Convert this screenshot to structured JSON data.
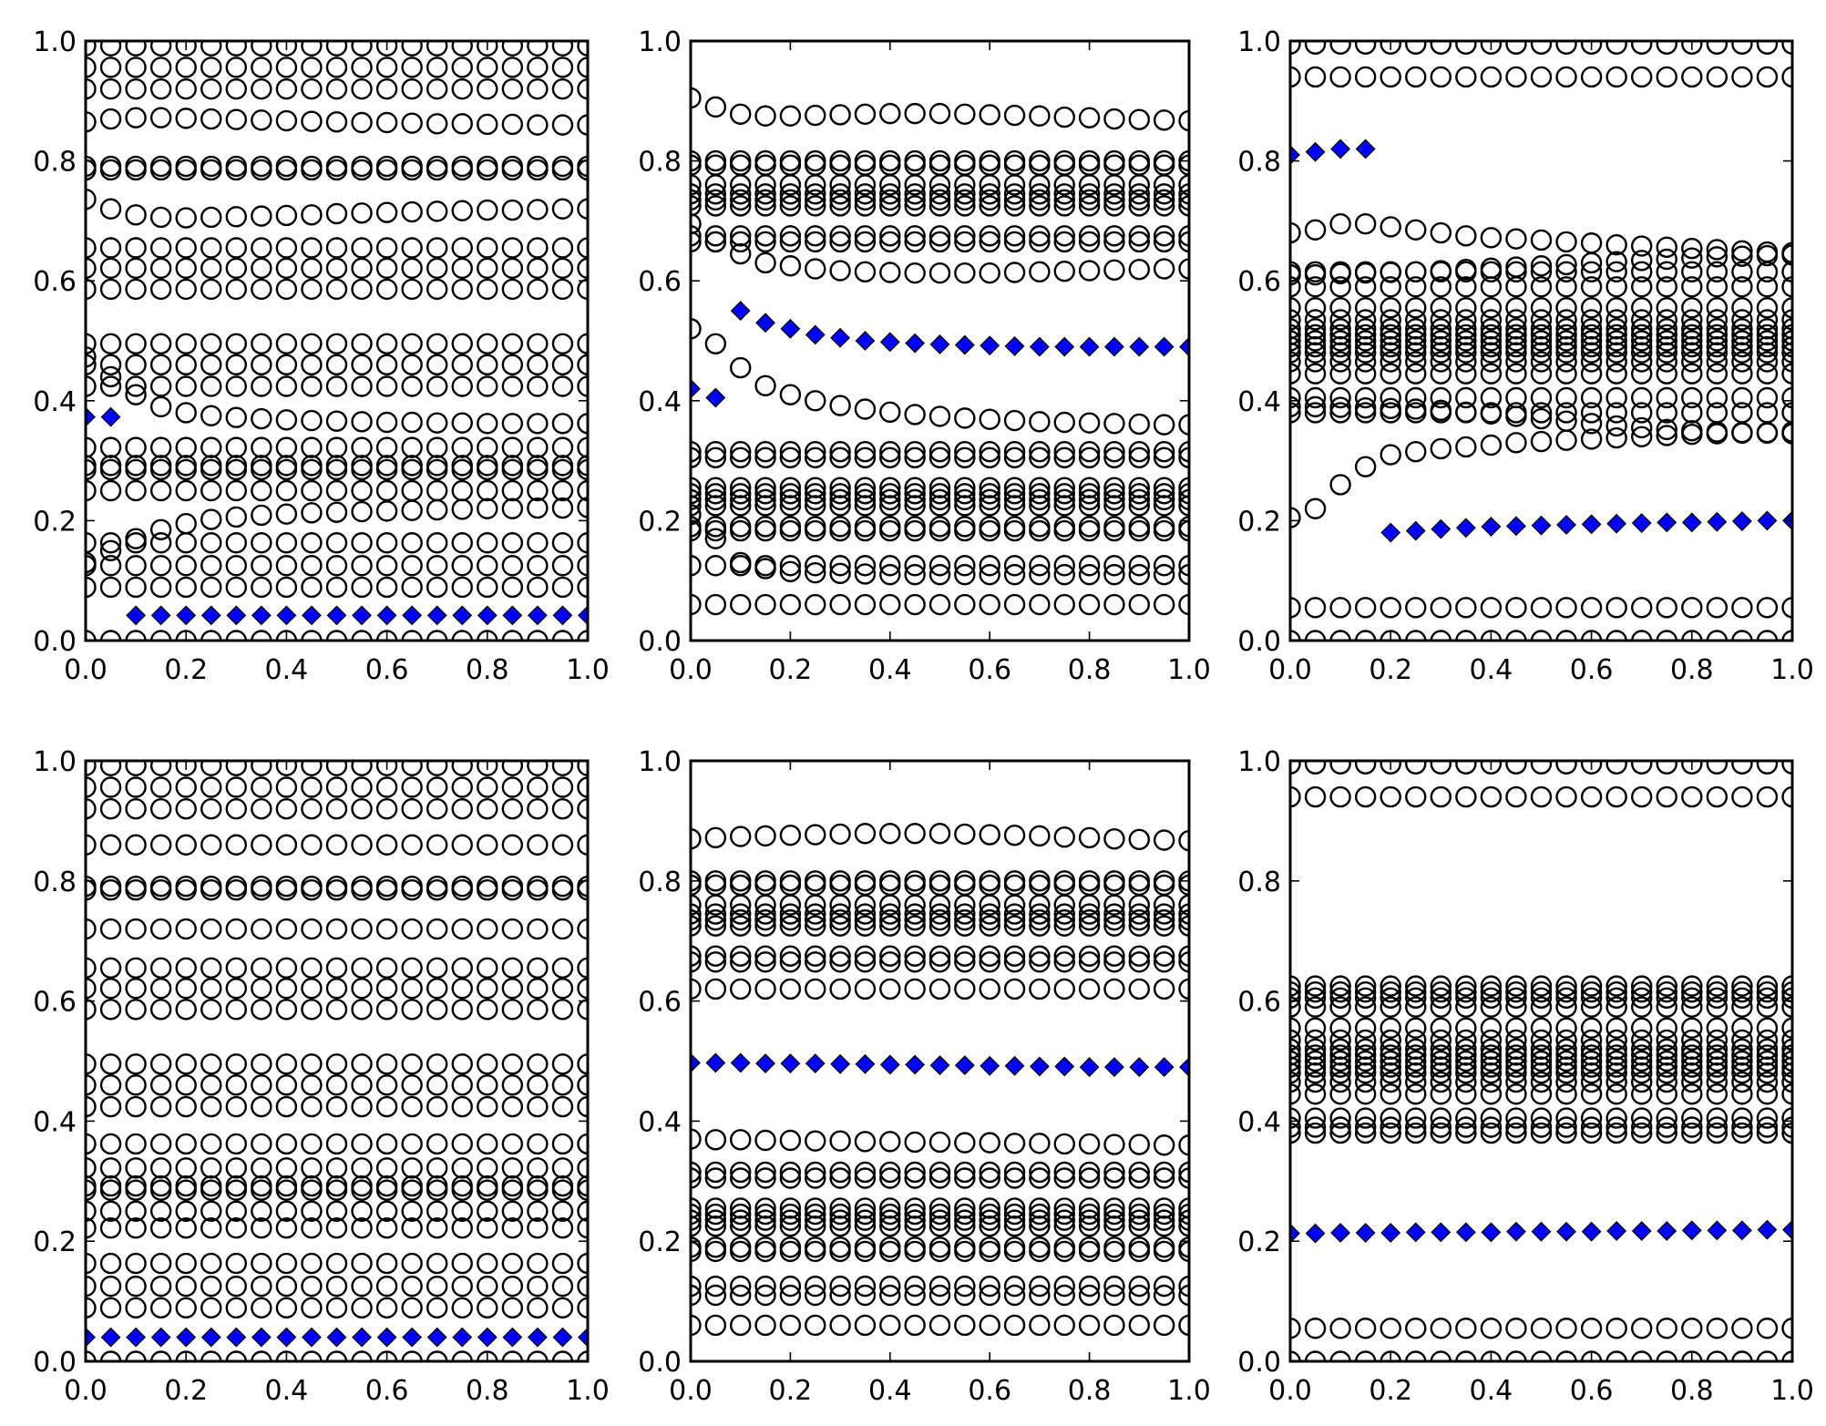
{
  "chart_data": [
    {
      "type": "scatter",
      "xlim": [
        0,
        1
      ],
      "ylim": [
        0,
        1
      ],
      "x_ticks": [
        "0.0",
        "0.2",
        "0.4",
        "0.6",
        "0.8",
        "1.0"
      ],
      "y_ticks": [
        "0.0",
        "0.2",
        "0.4",
        "0.6",
        "0.8",
        "1.0"
      ],
      "x": [
        0,
        0.05,
        0.1,
        0.15,
        0.2,
        0.25,
        0.3,
        0.35,
        0.4,
        0.45,
        0.5,
        0.55,
        0.6,
        0.65,
        0.7,
        0.75,
        0.8,
        0.85,
        0.9,
        0.95,
        1.0
      ],
      "circles": [
        {
          "y": 0.992
        },
        {
          "y": 0.956
        },
        {
          "y": 0.92
        },
        {
          "y": [
            0.865,
            0.87,
            0.872,
            0.872,
            0.871,
            0.87,
            0.869,
            0.868,
            0.867,
            0.866,
            0.865,
            0.864,
            0.864,
            0.863,
            0.862,
            0.862,
            0.861,
            0.861,
            0.86,
            0.86,
            0.86
          ]
        },
        {
          "y": 0.791
        },
        {
          "y": 0.785
        },
        {
          "y": [
            0.736,
            0.72,
            0.71,
            0.706,
            0.705,
            0.706,
            0.707,
            0.708,
            0.709,
            0.71,
            0.712,
            0.713,
            0.714,
            0.715,
            0.716,
            0.717,
            0.718,
            0.718,
            0.719,
            0.72,
            0.72
          ]
        },
        {
          "y": 0.655
        },
        {
          "y": 0.621
        },
        {
          "y": 0.586
        },
        {
          "y": 0.495
        },
        {
          "y": 0.46
        },
        {
          "y": 0.424
        },
        {
          "y": [
            0.473,
            0.44,
            0.41,
            0.39,
            0.38,
            0.375,
            0.372,
            0.37,
            0.368,
            0.367,
            0.366,
            0.365,
            0.364,
            0.364,
            0.363,
            0.363,
            0.362,
            0.362,
            0.362,
            0.362,
            0.362
          ]
        },
        {
          "y": 0.322
        },
        {
          "y": 0.292
        },
        {
          "y": 0.285
        },
        {
          "y": 0.25
        },
        {
          "y": [
            0.13,
            0.15,
            0.17,
            0.185,
            0.195,
            0.202,
            0.206,
            0.209,
            0.211,
            0.213,
            0.214,
            0.215,
            0.216,
            0.217,
            0.218,
            0.219,
            0.22,
            0.22,
            0.221,
            0.221,
            0.222
          ]
        },
        {
          "y": 0.163
        },
        {
          "y": 0.125
        },
        {
          "y": 0.089
        },
        {
          "y": 0.0
        }
      ],
      "diamonds": {
        "x": [
          0,
          0.05,
          0.1,
          0.15,
          0.2,
          0.25,
          0.3,
          0.35,
          0.4,
          0.45,
          0.5,
          0.55,
          0.6,
          0.65,
          0.7,
          0.75,
          0.8,
          0.85,
          0.9,
          0.95,
          1.0
        ],
        "y": [
          0.373,
          0.373,
          0.042,
          0.042,
          0.042,
          0.042,
          0.042,
          0.042,
          0.042,
          0.042,
          0.042,
          0.042,
          0.042,
          0.042,
          0.042,
          0.042,
          0.042,
          0.042,
          0.042,
          0.042,
          0.042
        ]
      }
    },
    {
      "type": "scatter",
      "xlim": [
        0,
        1
      ],
      "ylim": [
        0,
        1
      ],
      "x_ticks": [
        "0.0",
        "0.2",
        "0.4",
        "0.6",
        "0.8",
        "1.0"
      ],
      "y_ticks": [
        "0.0",
        "0.2",
        "0.4",
        "0.6",
        "0.8",
        "1.0"
      ],
      "x": [
        0,
        0.05,
        0.1,
        0.15,
        0.2,
        0.25,
        0.3,
        0.35,
        0.4,
        0.45,
        0.5,
        0.55,
        0.6,
        0.65,
        0.7,
        0.75,
        0.8,
        0.85,
        0.9,
        0.95,
        1.0
      ],
      "circles": [
        {
          "y": [
            0.905,
            0.89,
            0.878,
            0.875,
            0.875,
            0.876,
            0.877,
            0.878,
            0.879,
            0.879,
            0.879,
            0.878,
            0.877,
            0.876,
            0.875,
            0.873,
            0.872,
            0.87,
            0.869,
            0.868,
            0.867
          ]
        },
        {
          "y": 0.8
        },
        {
          "y": 0.793
        },
        {
          "y": 0.76
        },
        {
          "y": 0.745
        },
        {
          "y": 0.735
        },
        {
          "y": 0.725
        },
        {
          "y": [
            0.695,
            0.665,
            0.645,
            0.63,
            0.625,
            0.62,
            0.617,
            0.615,
            0.614,
            0.613,
            0.613,
            0.613,
            0.613,
            0.614,
            0.615,
            0.616,
            0.617,
            0.618,
            0.619,
            0.62,
            0.62
          ]
        },
        {
          "y": 0.675
        },
        {
          "y": 0.665
        },
        {
          "y": [
            0.52,
            0.495,
            0.455,
            0.425,
            0.41,
            0.4,
            0.392,
            0.386,
            0.381,
            0.377,
            0.374,
            0.371,
            0.369,
            0.367,
            0.365,
            0.364,
            0.363,
            0.362,
            0.361,
            0.36,
            0.36
          ]
        },
        {
          "y": 0.315
        },
        {
          "y": 0.305
        },
        {
          "y": 0.255
        },
        {
          "y": 0.245
        },
        {
          "y": 0.235
        },
        {
          "y": 0.225
        },
        {
          "y": 0.19
        },
        {
          "y": 0.183
        },
        {
          "y": [
            0.21,
            0.17,
            0.13,
            0.12,
            0.115,
            0.113,
            0.112,
            0.111,
            0.11,
            0.11,
            0.11,
            0.11,
            0.11,
            0.11,
            0.11,
            0.11,
            0.11,
            0.11,
            0.11,
            0.11,
            0.11
          ]
        },
        {
          "y": 0.125
        },
        {
          "y": 0.06
        }
      ],
      "diamonds": {
        "x": [
          0,
          0.05,
          0.1,
          0.15,
          0.2,
          0.25,
          0.3,
          0.35,
          0.4,
          0.45,
          0.5,
          0.55,
          0.6,
          0.65,
          0.7,
          0.75,
          0.8,
          0.85,
          0.9,
          0.95,
          1.0
        ],
        "y": [
          0.42,
          0.405,
          0.55,
          0.53,
          0.52,
          0.51,
          0.505,
          0.5,
          0.498,
          0.496,
          0.494,
          0.493,
          0.492,
          0.491,
          0.49,
          0.49,
          0.49,
          0.49,
          0.49,
          0.49,
          0.49
        ]
      }
    },
    {
      "type": "scatter",
      "xlim": [
        0,
        1
      ],
      "ylim": [
        0,
        1
      ],
      "x_ticks": [
        "0.0",
        "0.2",
        "0.4",
        "0.6",
        "0.8",
        "1.0"
      ],
      "y_ticks": [
        "0.0",
        "0.2",
        "0.4",
        "0.6",
        "0.8",
        "1.0"
      ],
      "x": [
        0,
        0.05,
        0.1,
        0.15,
        0.2,
        0.25,
        0.3,
        0.35,
        0.4,
        0.45,
        0.5,
        0.55,
        0.6,
        0.65,
        0.7,
        0.75,
        0.8,
        0.85,
        0.9,
        0.95,
        1.0
      ],
      "circles": [
        {
          "y": 0.995
        },
        {
          "y": 0.94
        },
        {
          "y": [
            0.68,
            0.685,
            0.695,
            0.695,
            0.69,
            0.685,
            0.68,
            0.675,
            0.672,
            0.67,
            0.668,
            0.665,
            0.663,
            0.66,
            0.658,
            0.656,
            0.654,
            0.652,
            0.65,
            0.648,
            0.647
          ]
        },
        {
          "y": [
            0.61,
            0.61,
            0.612,
            0.613,
            0.614,
            0.615,
            0.617,
            0.619,
            0.621,
            0.623,
            0.625,
            0.627,
            0.63,
            0.632,
            0.634,
            0.636,
            0.638,
            0.64,
            0.641,
            0.642,
            0.643
          ]
        },
        {
          "y": 0.615
        },
        {
          "y": 0.59
        },
        {
          "y": 0.555
        },
        {
          "y": 0.535
        },
        {
          "y": 0.52
        },
        {
          "y": 0.51
        },
        {
          "y": 0.5
        },
        {
          "y": 0.49
        },
        {
          "y": 0.48
        },
        {
          "y": 0.465
        },
        {
          "y": 0.445
        },
        {
          "y": 0.405
        },
        {
          "y": 0.38
        },
        {
          "y": [
            0.39,
            0.39,
            0.389,
            0.388,
            0.387,
            0.386,
            0.384,
            0.381,
            0.378,
            0.374,
            0.37,
            0.366,
            0.362,
            0.358,
            0.355,
            0.352,
            0.35,
            0.348,
            0.347,
            0.346,
            0.345
          ]
        },
        {
          "y": [
            0.205,
            0.22,
            0.26,
            0.29,
            0.31,
            0.315,
            0.32,
            0.323,
            0.326,
            0.33,
            0.332,
            0.334,
            0.336,
            0.338,
            0.34,
            0.342,
            0.344,
            0.345,
            0.346,
            0.347,
            0.348
          ]
        },
        {
          "y": 0.055
        },
        {
          "y": 0.0
        }
      ],
      "diamonds": {
        "x": [
          0,
          0.05,
          0.1,
          0.15,
          0.2,
          0.25,
          0.3,
          0.35,
          0.4,
          0.45,
          0.5,
          0.55,
          0.6,
          0.65,
          0.7,
          0.75,
          0.8,
          0.85,
          0.9,
          0.95,
          1.0
        ],
        "y": [
          0.81,
          0.815,
          0.82,
          0.82,
          0.18,
          0.183,
          0.186,
          0.188,
          0.19,
          0.191,
          0.192,
          0.193,
          0.194,
          0.195,
          0.196,
          0.197,
          0.197,
          0.198,
          0.199,
          0.2,
          0.2
        ]
      }
    },
    {
      "type": "scatter",
      "xlim": [
        0,
        1
      ],
      "ylim": [
        0,
        1
      ],
      "x_ticks": [
        "0.0",
        "0.2",
        "0.4",
        "0.6",
        "0.8",
        "1.0"
      ],
      "y_ticks": [
        "0.0",
        "0.2",
        "0.4",
        "0.6",
        "0.8",
        "1.0"
      ],
      "x": [
        0,
        0.05,
        0.1,
        0.15,
        0.2,
        0.25,
        0.3,
        0.35,
        0.4,
        0.45,
        0.5,
        0.55,
        0.6,
        0.65,
        0.7,
        0.75,
        0.8,
        0.85,
        0.9,
        0.95,
        1.0
      ],
      "circles": [
        {
          "y": 0.992
        },
        {
          "y": 0.956
        },
        {
          "y": 0.92
        },
        {
          "y": 0.86
        },
        {
          "y": 0.791
        },
        {
          "y": 0.785
        },
        {
          "y": 0.72
        },
        {
          "y": 0.655
        },
        {
          "y": 0.621
        },
        {
          "y": 0.586
        },
        {
          "y": 0.495
        },
        {
          "y": 0.46
        },
        {
          "y": 0.424
        },
        {
          "y": 0.362
        },
        {
          "y": 0.322
        },
        {
          "y": 0.292
        },
        {
          "y": 0.285
        },
        {
          "y": 0.25
        },
        {
          "y": 0.222
        },
        {
          "y": 0.163
        },
        {
          "y": 0.125
        },
        {
          "y": 0.089
        },
        {
          "y": 0.0
        }
      ],
      "diamonds": {
        "x": [
          0,
          0.05,
          0.1,
          0.15,
          0.2,
          0.25,
          0.3,
          0.35,
          0.4,
          0.45,
          0.5,
          0.55,
          0.6,
          0.65,
          0.7,
          0.75,
          0.8,
          0.85,
          0.9,
          0.95,
          1.0
        ],
        "y": [
          0.04,
          0.04,
          0.04,
          0.04,
          0.04,
          0.04,
          0.04,
          0.04,
          0.04,
          0.04,
          0.04,
          0.04,
          0.04,
          0.04,
          0.04,
          0.04,
          0.04,
          0.04,
          0.04,
          0.04,
          0.04
        ]
      }
    },
    {
      "type": "scatter",
      "xlim": [
        0,
        1
      ],
      "ylim": [
        0,
        1
      ],
      "x_ticks": [
        "0.0",
        "0.2",
        "0.4",
        "0.6",
        "0.8",
        "1.0"
      ],
      "y_ticks": [
        "0.0",
        "0.2",
        "0.4",
        "0.6",
        "0.8",
        "1.0"
      ],
      "x": [
        0,
        0.05,
        0.1,
        0.15,
        0.2,
        0.25,
        0.3,
        0.35,
        0.4,
        0.45,
        0.5,
        0.55,
        0.6,
        0.65,
        0.7,
        0.75,
        0.8,
        0.85,
        0.9,
        0.95,
        1.0
      ],
      "circles": [
        {
          "y": [
            0.87,
            0.872,
            0.874,
            0.875,
            0.876,
            0.877,
            0.878,
            0.879,
            0.879,
            0.879,
            0.879,
            0.878,
            0.877,
            0.876,
            0.875,
            0.873,
            0.872,
            0.87,
            0.869,
            0.868,
            0.867
          ]
        },
        {
          "y": 0.8
        },
        {
          "y": 0.793
        },
        {
          "y": 0.76
        },
        {
          "y": 0.745
        },
        {
          "y": 0.735
        },
        {
          "y": 0.725
        },
        {
          "y": 0.675
        },
        {
          "y": 0.665
        },
        {
          "y": 0.62
        },
        {
          "y": [
            0.37,
            0.369,
            0.369,
            0.368,
            0.368,
            0.367,
            0.367,
            0.366,
            0.366,
            0.365,
            0.365,
            0.364,
            0.364,
            0.363,
            0.363,
            0.362,
            0.362,
            0.361,
            0.361,
            0.36,
            0.36
          ]
        },
        {
          "y": 0.315
        },
        {
          "y": 0.305
        },
        {
          "y": 0.255
        },
        {
          "y": 0.245
        },
        {
          "y": 0.235
        },
        {
          "y": 0.225
        },
        {
          "y": 0.19
        },
        {
          "y": 0.183
        },
        {
          "y": 0.125
        },
        {
          "y": 0.11
        },
        {
          "y": 0.06
        }
      ],
      "diamonds": {
        "x": [
          0,
          0.05,
          0.1,
          0.15,
          0.2,
          0.25,
          0.3,
          0.35,
          0.4,
          0.45,
          0.5,
          0.55,
          0.6,
          0.65,
          0.7,
          0.75,
          0.8,
          0.85,
          0.9,
          0.95,
          1.0
        ],
        "y": [
          0.497,
          0.497,
          0.497,
          0.496,
          0.496,
          0.496,
          0.495,
          0.495,
          0.494,
          0.494,
          0.493,
          0.493,
          0.492,
          0.492,
          0.491,
          0.491,
          0.49,
          0.49,
          0.49,
          0.49,
          0.49
        ]
      }
    },
    {
      "type": "scatter",
      "xlim": [
        0,
        1
      ],
      "ylim": [
        0,
        1
      ],
      "x_ticks": [
        "0.0",
        "0.2",
        "0.4",
        "0.6",
        "0.8",
        "1.0"
      ],
      "y_ticks": [
        "0.0",
        "0.2",
        "0.4",
        "0.6",
        "0.8",
        "1.0"
      ],
      "x": [
        0,
        0.05,
        0.1,
        0.15,
        0.2,
        0.25,
        0.3,
        0.35,
        0.4,
        0.45,
        0.5,
        0.55,
        0.6,
        0.65,
        0.7,
        0.75,
        0.8,
        0.85,
        0.9,
        0.95,
        1.0
      ],
      "circles": [
        {
          "y": 0.995
        },
        {
          "y": 0.94
        },
        {
          "y": 0.625
        },
        {
          "y": 0.615
        },
        {
          "y": 0.605
        },
        {
          "y": 0.59
        },
        {
          "y": 0.555
        },
        {
          "y": 0.535
        },
        {
          "y": 0.52
        },
        {
          "y": 0.51
        },
        {
          "y": 0.5
        },
        {
          "y": 0.49
        },
        {
          "y": 0.48
        },
        {
          "y": 0.465
        },
        {
          "y": 0.445
        },
        {
          "y": 0.405
        },
        {
          "y": 0.39
        },
        {
          "y": 0.38
        },
        {
          "y": 0.055
        },
        {
          "y": 0.0
        }
      ],
      "diamonds": {
        "x": [
          0,
          0.05,
          0.1,
          0.15,
          0.2,
          0.25,
          0.3,
          0.35,
          0.4,
          0.45,
          0.5,
          0.55,
          0.6,
          0.65,
          0.7,
          0.75,
          0.8,
          0.85,
          0.9,
          0.95,
          1.0
        ],
        "y": [
          0.213,
          0.213,
          0.214,
          0.214,
          0.214,
          0.215,
          0.215,
          0.215,
          0.215,
          0.216,
          0.216,
          0.216,
          0.216,
          0.217,
          0.217,
          0.217,
          0.218,
          0.218,
          0.218,
          0.219,
          0.219
        ]
      }
    }
  ],
  "colors": {
    "circle_edge": "#000000",
    "circle_fill": "none",
    "diamond_fill": "#0000ff",
    "diamond_edge": "#000000"
  }
}
